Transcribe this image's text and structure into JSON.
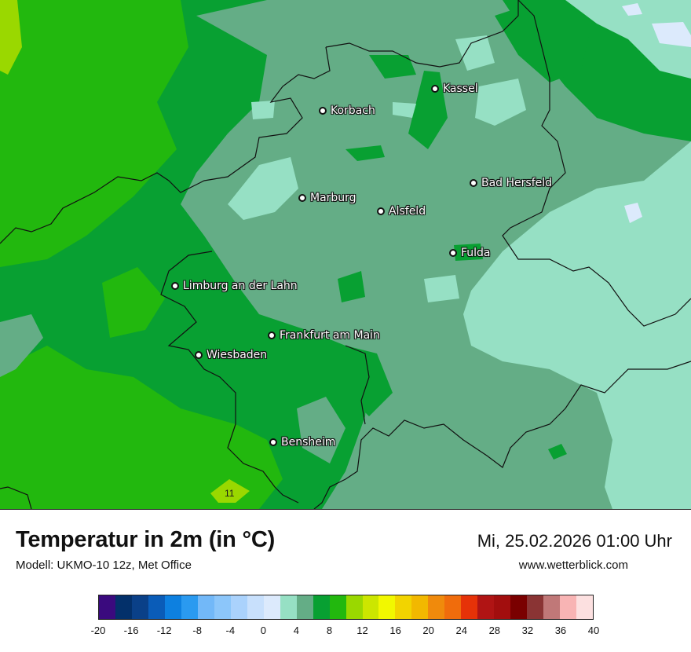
{
  "map": {
    "cities": [
      {
        "name": "Kassel",
        "id": "kassel"
      },
      {
        "name": "Korbach",
        "id": "korbach"
      },
      {
        "name": "Bad Hersfeld",
        "id": "bad-hersfeld"
      },
      {
        "name": "Marburg",
        "id": "marburg"
      },
      {
        "name": "Alsfeld",
        "id": "alsfeld"
      },
      {
        "name": "Fulda",
        "id": "fulda"
      },
      {
        "name": "Limburg an der Lahn",
        "id": "limburg"
      },
      {
        "name": "Frankfurt am Main",
        "id": "frankfurt"
      },
      {
        "name": "Wiesbaden",
        "id": "wiesbaden"
      },
      {
        "name": "Bensheim",
        "id": "bensheim"
      }
    ],
    "peak_value": "11"
  },
  "footer": {
    "title": "Temperatur in 2m (in °C)",
    "model": "Modell: UKMO-10 12z, Met Office",
    "datetime": "Mi, 25.02.2026 01:00 Uhr",
    "website": "www.wetterblick.com"
  },
  "legend": {
    "colors": [
      "#3a0a7e",
      "#03306a",
      "#0a4088",
      "#0a5cb8",
      "#0d80e0",
      "#2a9af0",
      "#72b8f8",
      "#8cc6fa",
      "#aad2fc",
      "#c8e0fc",
      "#dceafc",
      "#96e0c4",
      "#64ad86",
      "#08a032",
      "#22b80e",
      "#9ad800",
      "#cce600",
      "#f2f800",
      "#f2d400",
      "#f2b800",
      "#f08a0c",
      "#f06c0c",
      "#e63208",
      "#b01414",
      "#a20e0e",
      "#7a0000",
      "#8a3434",
      "#c07878",
      "#f8b4b4",
      "#fce0e0"
    ],
    "ticks": [
      "-20",
      "-16",
      "-12",
      "-8",
      "-4",
      "0",
      "4",
      "8",
      "12",
      "16",
      "20",
      "24",
      "28",
      "32",
      "36",
      "40"
    ]
  }
}
